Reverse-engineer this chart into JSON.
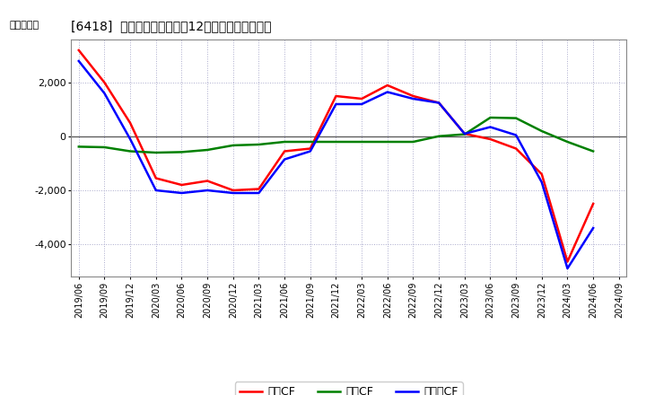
{
  "title": "[6418]  キャッシュフローの12か月移動合計の推移",
  "ylabel": "（百万円）",
  "background_color": "#ffffff",
  "plot_bg_color": "#ffffff",
  "grid_color": "#aaaacc",
  "line_width": 1.8,
  "dates": [
    "2019/06",
    "2019/09",
    "2019/12",
    "2020/03",
    "2020/06",
    "2020/09",
    "2020/12",
    "2021/03",
    "2021/06",
    "2021/09",
    "2021/12",
    "2022/03",
    "2022/06",
    "2022/09",
    "2022/12",
    "2023/03",
    "2023/06",
    "2023/09",
    "2023/12",
    "2024/03",
    "2024/06",
    "2024/09"
  ],
  "operating_cf": [
    3200,
    2000,
    500,
    -1550,
    -1800,
    -1650,
    -2000,
    -1950,
    -550,
    -450,
    1500,
    1400,
    1900,
    1500,
    1250,
    100,
    -100,
    -450,
    -1400,
    -4650,
    -2500,
    null
  ],
  "investing_cf": [
    -380,
    -400,
    -550,
    -600,
    -580,
    -500,
    -330,
    -300,
    -200,
    -200,
    -200,
    -200,
    -200,
    -200,
    10,
    80,
    700,
    680,
    200,
    -200,
    -550,
    null
  ],
  "free_cf": [
    2800,
    1600,
    -100,
    -2000,
    -2100,
    -2000,
    -2100,
    -2100,
    -850,
    -550,
    1200,
    1200,
    1650,
    1400,
    1250,
    100,
    350,
    50,
    -1700,
    -4900,
    -3400,
    null
  ],
  "operating_color": "#ff0000",
  "investing_color": "#008000",
  "free_color": "#0000ff",
  "ylim": [
    -5200,
    3600
  ],
  "yticks": [
    -4000,
    -2000,
    0,
    2000
  ],
  "legend_labels": [
    "営業CF",
    "投資CF",
    "フリーCF"
  ]
}
